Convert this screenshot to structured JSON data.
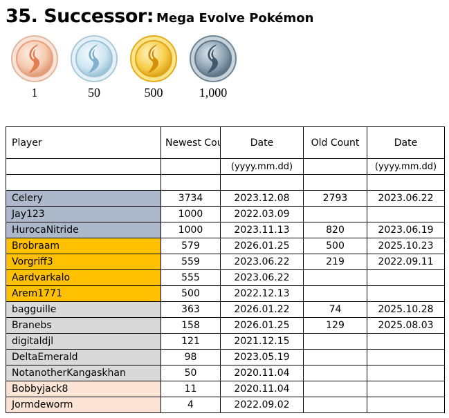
{
  "title": {
    "number_label": "35. Successor:",
    "subtitle": "Mega Evolve Pokémon"
  },
  "medals": [
    {
      "icon": "bronze-medal-icon",
      "label": "1",
      "color": "#f2b89a"
    },
    {
      "icon": "silver-medal-icon",
      "label": "50",
      "color": "#bcd9ea"
    },
    {
      "icon": "gold-medal-icon",
      "label": "500",
      "color": "#f5c342"
    },
    {
      "icon": "platinum-medal-icon",
      "label": "1,000",
      "color": "#7f95a6"
    }
  ],
  "table": {
    "headers": {
      "player": "Player",
      "newest_count": "Newest Count",
      "date": "Date",
      "old_count": "Old Count",
      "old_date": "Date",
      "date_format": "(yyyy.mm.dd)",
      "old_date_format": "(yyyy.mm.dd)"
    },
    "tier_colors": {
      "blue": "#adb9ca",
      "gold": "#ffc000",
      "gray": "#d9d9d9",
      "peach": "#fbe4d5"
    },
    "rows": [
      {
        "player": "Celery",
        "newest": "3734",
        "date": "2023.12.08",
        "old": "2793",
        "old_date": "2023.06.22",
        "tier": "blue"
      },
      {
        "player": "Jay123",
        "newest": "1000",
        "date": "2022.03.09",
        "old": "",
        "old_date": "",
        "tier": "blue"
      },
      {
        "player": "HurocaNitride",
        "newest": "1000",
        "date": "2023.11.13",
        "old": "820",
        "old_date": "2023.06.19",
        "tier": "blue"
      },
      {
        "player": "Brobraam",
        "newest": "579",
        "date": "2026.01.25",
        "old": "500",
        "old_date": "2025.10.23",
        "tier": "gold"
      },
      {
        "player": "Vorgriff3",
        "newest": "559",
        "date": "2023.06.22",
        "old": "219",
        "old_date": "2022.09.11",
        "tier": "gold"
      },
      {
        "player": "Aardvarkalo",
        "newest": "555",
        "date": "2023.06.22",
        "old": "",
        "old_date": "",
        "tier": "gold"
      },
      {
        "player": "Arem1771",
        "newest": "500",
        "date": "2022.12.13",
        "old": "",
        "old_date": "",
        "tier": "gold"
      },
      {
        "player": "bagguille",
        "newest": "363",
        "date": "2026.01.22",
        "old": "74",
        "old_date": "2025.10.28",
        "tier": "gray"
      },
      {
        "player": "Branebs",
        "newest": "158",
        "date": "2026.01.25",
        "old": "129",
        "old_date": "2025.08.03",
        "tier": "gray"
      },
      {
        "player": "digitaldjl",
        "newest": "121",
        "date": "2021.12.15",
        "old": "",
        "old_date": "",
        "tier": "gray"
      },
      {
        "player": "DeltaEmerald",
        "newest": "98",
        "date": "2023.05.19",
        "old": "",
        "old_date": "",
        "tier": "gray"
      },
      {
        "player": "NotanotherKangaskhan",
        "newest": "50",
        "date": "2020.11.04",
        "old": "",
        "old_date": "",
        "tier": "gray"
      },
      {
        "player": "Bobbyjack8",
        "newest": "11",
        "date": "2020.11.04",
        "old": "",
        "old_date": "",
        "tier": "peach"
      },
      {
        "player": "Jormdeworm",
        "newest": "4",
        "date": "2022.09.02",
        "old": "",
        "old_date": "",
        "tier": "peach"
      }
    ]
  }
}
